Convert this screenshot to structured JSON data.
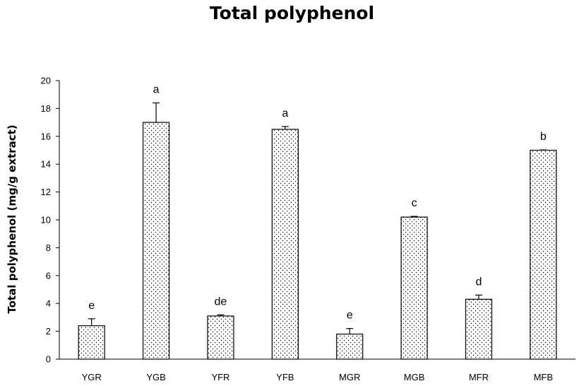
{
  "chart_data": {
    "type": "bar",
    "title": "Total polyphenol",
    "xlabel": "",
    "ylabel": "Total polyphenol (mg/g extract)",
    "ylim": [
      0,
      20
    ],
    "yticks": [
      "0",
      "2",
      "4",
      "6",
      "8",
      "10",
      "12",
      "14",
      "16",
      "18",
      "20"
    ],
    "categories": [
      "YGR",
      "YGB",
      "YFR",
      "YFB",
      "MGR",
      "MGB",
      "MFR",
      "MFB"
    ],
    "values": [
      2.4,
      17.0,
      3.1,
      16.5,
      1.8,
      10.2,
      4.3,
      15.0
    ],
    "errors": [
      0.5,
      1.4,
      0.08,
      0.2,
      0.4,
      0.05,
      0.3,
      0.02
    ],
    "significance": [
      "e",
      "a",
      "de",
      "a",
      "e",
      "c",
      "d",
      "b"
    ],
    "grid": false,
    "bar_fill": "dotted",
    "colors": {
      "bar_fill": "#ffffff",
      "dot": "#000000",
      "stroke": "#000000"
    }
  }
}
